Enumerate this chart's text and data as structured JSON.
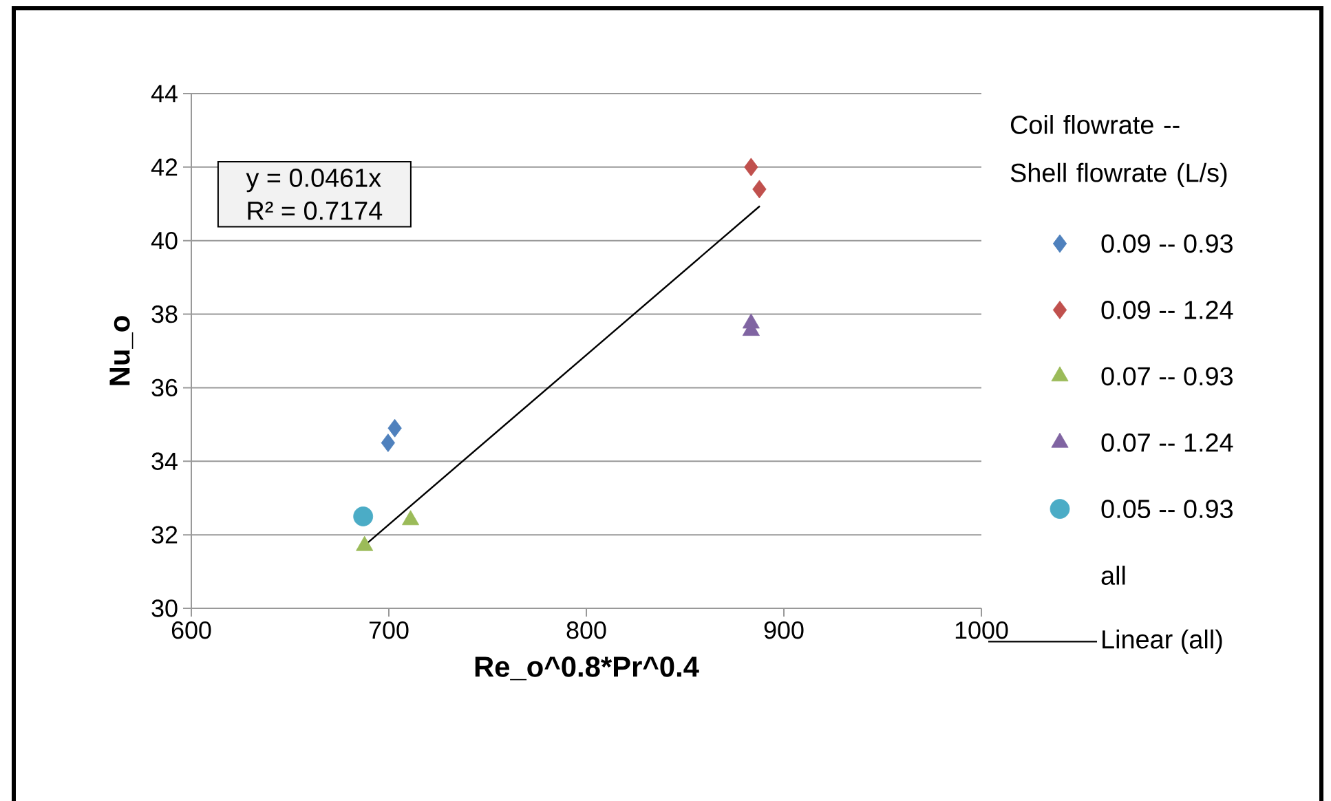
{
  "chart_data": {
    "type": "scatter",
    "xlabel": "Re_o^0.8*Pr^0.4",
    "ylabel": "Nu_o",
    "legend_title": "Coil flowrate -- Shell flowrate (L/s)",
    "legend": "right",
    "grid": "y",
    "xlim": [
      600,
      1000
    ],
    "xticks": [
      600,
      700,
      800,
      900,
      1000
    ],
    "ylim": [
      30,
      44
    ],
    "yticks": [
      30,
      32,
      34,
      36,
      38,
      40,
      42,
      44
    ],
    "annotations": [
      "y = 0.0461x",
      "R² = 0.7174"
    ],
    "series": [
      {
        "name": "0.09 -- 0.93",
        "color": "#4f81bd",
        "marker": "diamond",
        "x": [
          699.6,
          703
        ],
        "values": [
          34.5,
          34.9
        ]
      },
      {
        "name": "0.09 -- 1.24",
        "color": "#c0504d",
        "marker": "diamond",
        "x": [
          883.4,
          887.6
        ],
        "values": [
          42.0,
          41.4
        ]
      },
      {
        "name": "0.07 -- 0.93",
        "color": "#9bbb59",
        "marker": "triangle",
        "x": [
          687.7,
          711
        ],
        "values": [
          31.7,
          32.4
        ]
      },
      {
        "name": "0.07 -- 1.24",
        "color": "#8064a2",
        "marker": "triangle",
        "x": [
          883.4,
          883.4
        ],
        "values": [
          37.75,
          37.55
        ]
      },
      {
        "name": "0.05 -- 0.93",
        "color": "#4bacc6",
        "marker": "circle",
        "x": [
          687
        ],
        "values": [
          32.5
        ]
      },
      {
        "name": "all",
        "marker": "none"
      },
      {
        "name": "Linear (all)",
        "type": "line",
        "color": "#000000",
        "marker": "none",
        "line_style": "solid",
        "x": [
          686.6,
          887.8
        ],
        "values": [
          31.66,
          40.94
        ]
      }
    ]
  }
}
